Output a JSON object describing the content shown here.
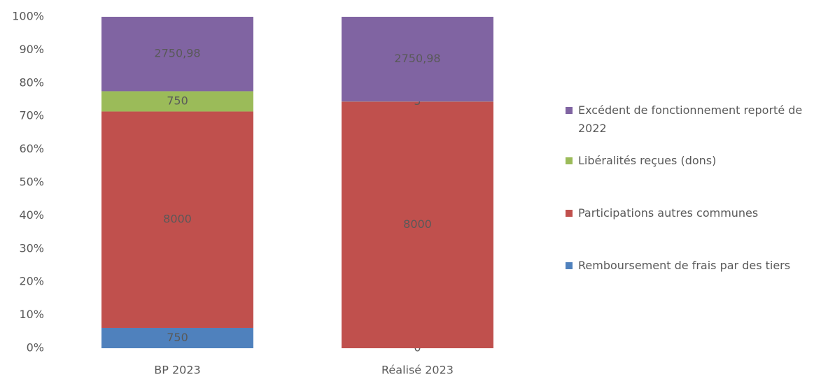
{
  "chart_data": {
    "type": "bar",
    "stack": "percent",
    "categories": [
      "BP 2023",
      "Réalisé 2023"
    ],
    "series": [
      {
        "name": "Remboursement de frais par des tiers",
        "color": "#4f81bd",
        "values": [
          750,
          0
        ]
      },
      {
        "name": "Participations autres communes",
        "color": "#c0504d",
        "values": [
          8000,
          8000
        ]
      },
      {
        "name": "Libéralités reçues (dons)",
        "color": "#9bbb59",
        "values": [
          750,
          5
        ]
      },
      {
        "name": "Excédent de fonctionnement reporté de 2022",
        "color": "#8064a2",
        "values": [
          2750.98,
          2750.98
        ],
        "value_labels": [
          "2750,98",
          "2750,98"
        ]
      }
    ],
    "ylim": [
      0,
      100
    ],
    "yticks": [
      {
        "value": 0,
        "label": "0%"
      },
      {
        "value": 10,
        "label": "10%"
      },
      {
        "value": 20,
        "label": "20%"
      },
      {
        "value": 30,
        "label": "30%"
      },
      {
        "value": 40,
        "label": "40%"
      },
      {
        "value": 50,
        "label": "50%"
      },
      {
        "value": 60,
        "label": "60%"
      },
      {
        "value": 70,
        "label": "70%"
      },
      {
        "value": 80,
        "label": "80%"
      },
      {
        "value": 90,
        "label": "90%"
      },
      {
        "value": 100,
        "label": "100%"
      }
    ],
    "grid": false,
    "legend": "right"
  }
}
